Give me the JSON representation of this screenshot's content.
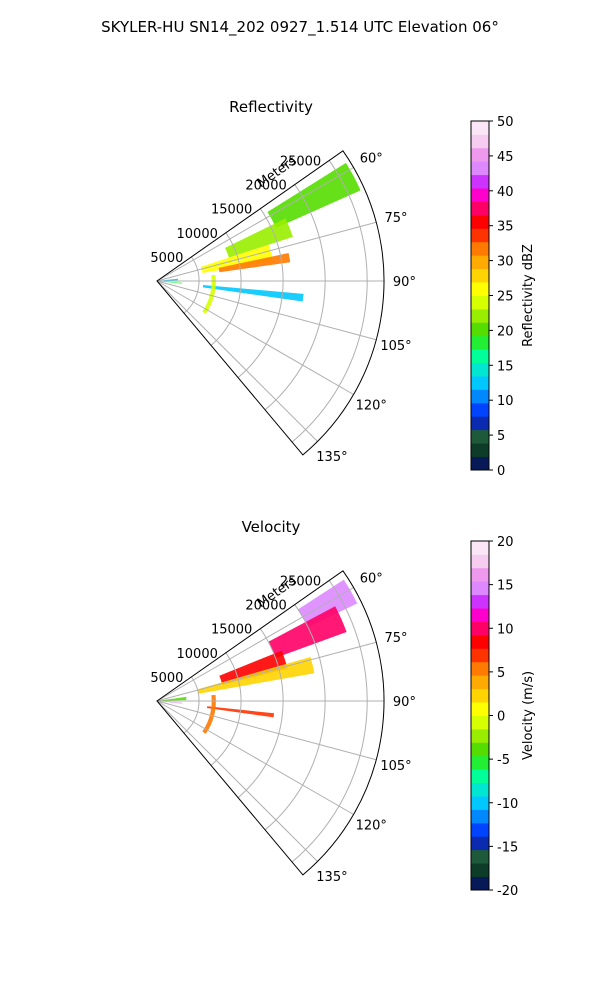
{
  "figure": {
    "title": "SKYLER-HU  SN14_202  0927_1.514 UTC Elevation 06°"
  },
  "chart_data": [
    {
      "type": "heatmap",
      "subtype": "polar-sector",
      "title": "Reflectivity",
      "range_label": "Meters",
      "range_ticks": [
        5000,
        10000,
        15000,
        20000,
        25000
      ],
      "range_max": 27000,
      "azimuth_ticks": [
        "60°",
        "75°",
        "90°",
        "105°",
        "120°",
        "135°"
      ],
      "azimuth_range": [
        55,
        140
      ],
      "grid": true,
      "colorbar": {
        "label": "Reflectivity dBZ",
        "min": 0,
        "max": 50,
        "ticks": [
          0,
          5,
          10,
          15,
          20,
          25,
          30,
          35,
          40,
          45,
          50
        ],
        "colors": [
          "#071a57",
          "#0d3c28",
          "#1e5a3a",
          "#0a2bb0",
          "#0044ff",
          "#0088ff",
          "#00c8ff",
          "#00e6d0",
          "#00ff99",
          "#22ee33",
          "#55dd00",
          "#99ee00",
          "#d6ff00",
          "#ffff00",
          "#ffd400",
          "#ffaa00",
          "#ff7a00",
          "#ff3300",
          "#ff0000",
          "#ff0066",
          "#ff00cc",
          "#cc33ff",
          "#dd88ff",
          "#ee99ee",
          "#f6ccf0",
          "#fbe6f8"
        ]
      },
      "features": [
        {
          "az": [
            58,
            66
          ],
          "r": [
            15500,
            26500
          ],
          "value": 20
        },
        {
          "az": [
            64,
            72
          ],
          "r": [
            9000,
            17000
          ],
          "value": 22
        },
        {
          "az": [
            72,
            80
          ],
          "r": [
            5500,
            14000
          ],
          "value": 25
        },
        {
          "az": [
            78,
            82
          ],
          "r": [
            7500,
            16000
          ],
          "value": 32
        },
        {
          "az": [
            84,
            88
          ],
          "r": [
            500,
            2500
          ],
          "value": 12
        },
        {
          "az": [
            94,
            96
          ],
          "r": [
            400,
            3000
          ],
          "value": 18
        },
        {
          "az": [
            95,
            98
          ],
          "r": [
            5500,
            17500
          ],
          "value": 12
        },
        {
          "az": [
            84,
            124
          ],
          "r": [
            6500,
            7000
          ],
          "value": 24
        }
      ]
    },
    {
      "type": "heatmap",
      "subtype": "polar-sector",
      "title": "Velocity",
      "range_label": "Meters",
      "range_ticks": [
        5000,
        10000,
        15000,
        20000,
        25000
      ],
      "range_max": 27000,
      "azimuth_ticks": [
        "60°",
        "75°",
        "90°",
        "105°",
        "120°",
        "135°"
      ],
      "azimuth_range": [
        55,
        140
      ],
      "grid": true,
      "colorbar": {
        "label": "Velocity (m/s)",
        "min": -20,
        "max": 20,
        "ticks": [
          -20,
          -15,
          -10,
          -5,
          0,
          5,
          10,
          15,
          20
        ],
        "colors": [
          "#071a57",
          "#0d3c28",
          "#1e5a3a",
          "#0a2bb0",
          "#0044ff",
          "#0088ff",
          "#00c8ff",
          "#00e6d0",
          "#00ff99",
          "#22ee33",
          "#55dd00",
          "#99ee00",
          "#d6ff00",
          "#ffff00",
          "#ffd400",
          "#ffaa00",
          "#ff7a00",
          "#ff3300",
          "#ff0000",
          "#ff0066",
          "#ff00cc",
          "#cc33ff",
          "#dd88ff",
          "#ee99ee",
          "#f6ccf0",
          "#fbe6f8"
        ]
      },
      "features": [
        {
          "az": [
            57,
            64
          ],
          "r": [
            20000,
            26500
          ],
          "value": 15
        },
        {
          "az": [
            62,
            70
          ],
          "r": [
            15000,
            24000
          ],
          "value": 10
        },
        {
          "az": [
            68,
            76
          ],
          "r": [
            8000,
            16000
          ],
          "value": 8
        },
        {
          "az": [
            74,
            80
          ],
          "r": [
            5000,
            19000
          ],
          "value": 3
        },
        {
          "az": [
            82,
            88
          ],
          "r": [
            300,
            3500
          ],
          "value": -4
        },
        {
          "az": [
            94,
            96
          ],
          "r": [
            300,
            3000
          ],
          "value": 15
        },
        {
          "az": [
            96,
            98
          ],
          "r": [
            6000,
            14000
          ],
          "value": 7
        },
        {
          "az": [
            84,
            124
          ],
          "r": [
            6500,
            7000
          ],
          "value": 6
        }
      ]
    }
  ]
}
